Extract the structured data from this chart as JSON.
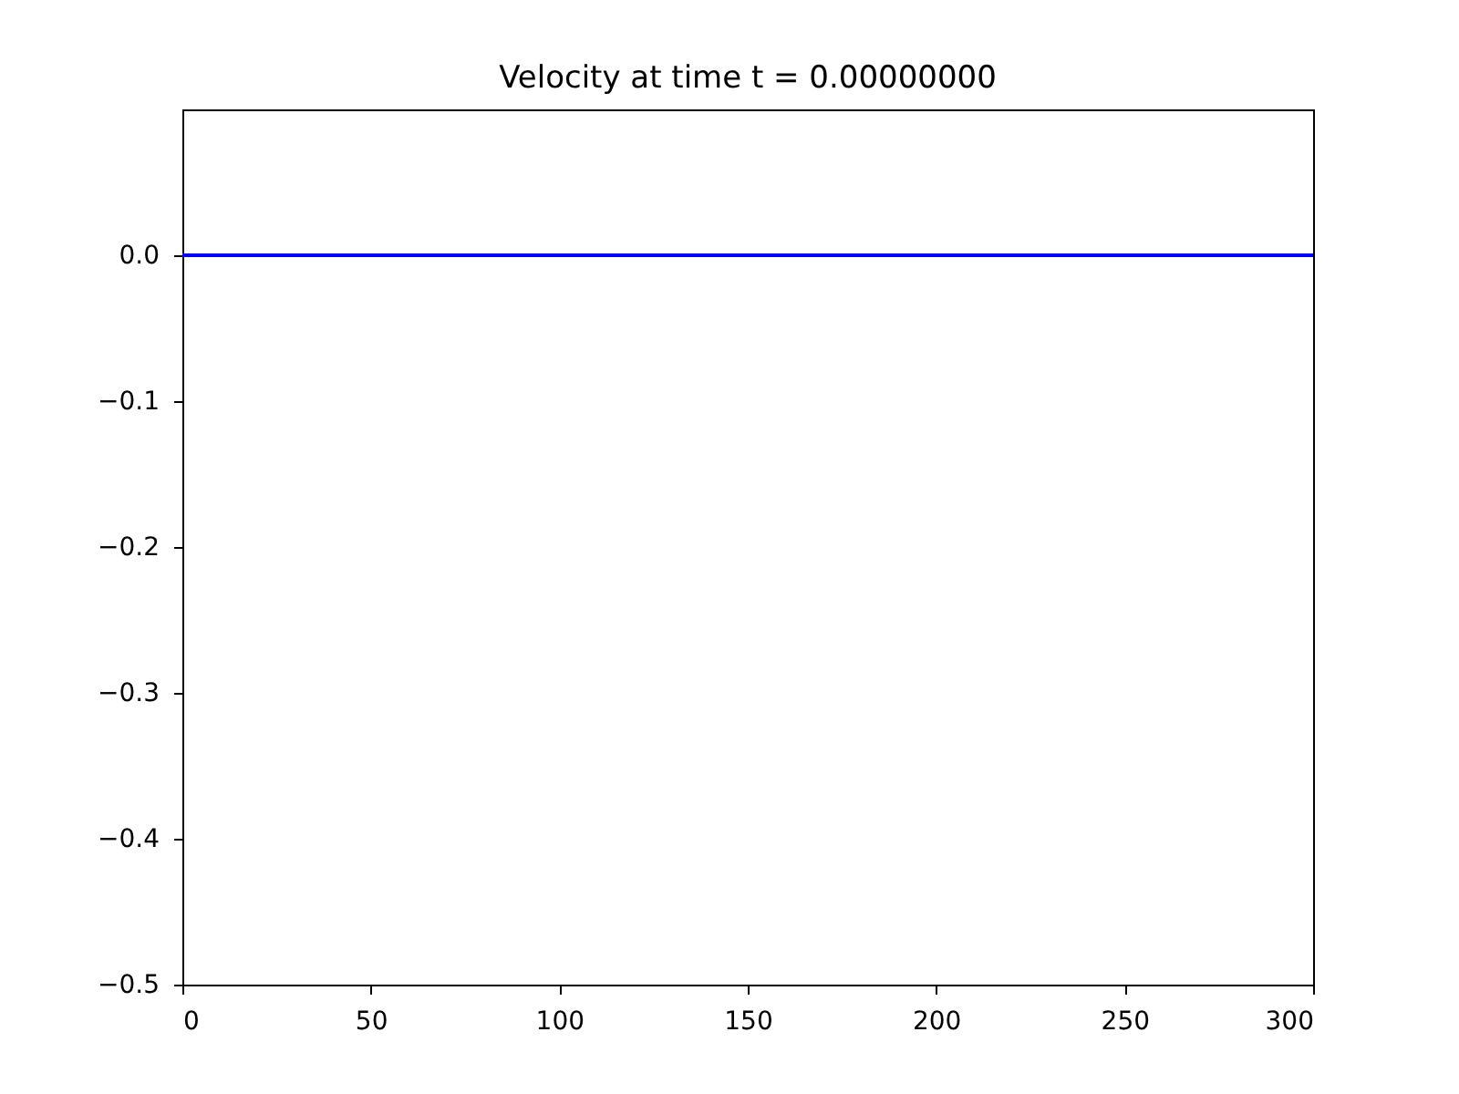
{
  "chart_data": {
    "type": "line",
    "title": "Velocity at time t =     0.00000000",
    "x": [
      0,
      300
    ],
    "series": [
      {
        "color": "#0000ff",
        "values": [
          0,
          0
        ]
      }
    ],
    "xlim": [
      0,
      300
    ],
    "xticks": [
      0,
      50,
      100,
      150,
      200,
      250,
      300
    ],
    "ylim": [
      -0.5,
      0.1
    ],
    "yticks": [
      {
        "value": -0.5,
        "label": "−0.5"
      },
      {
        "value": -0.4,
        "label": "−0.4"
      },
      {
        "value": -0.3,
        "label": "−0.3"
      },
      {
        "value": -0.2,
        "label": "−0.2"
      },
      {
        "value": -0.1,
        "label": "−0.1"
      },
      {
        "value": 0,
        "label": "0.0"
      }
    ],
    "grid": false,
    "marker": "none",
    "line_style": "solid"
  }
}
